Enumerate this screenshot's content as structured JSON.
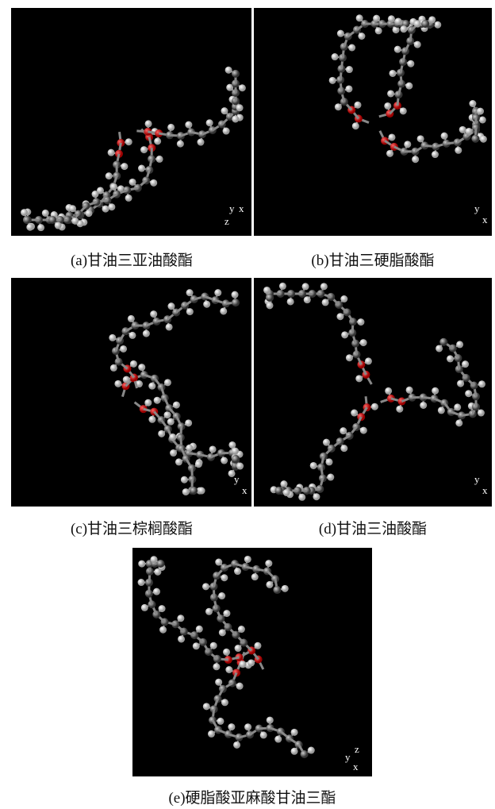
{
  "panels": [
    {
      "caption": "(a)甘油三亚油酸酯",
      "axes": [
        "y",
        "x",
        "z"
      ]
    },
    {
      "caption": "(b)甘油三硬脂酸酯",
      "axes": [
        "y",
        "x"
      ]
    },
    {
      "caption": "(c)甘油三棕榈酸酯",
      "axes": [
        "y",
        "x"
      ]
    },
    {
      "caption": "(d)甘油三油酸酯",
      "axes": [
        "y",
        "x"
      ]
    },
    {
      "caption": "(e)硬脂酸亚麻酸甘油三酯",
      "axes": [
        "z",
        "y",
        "x"
      ]
    }
  ]
}
